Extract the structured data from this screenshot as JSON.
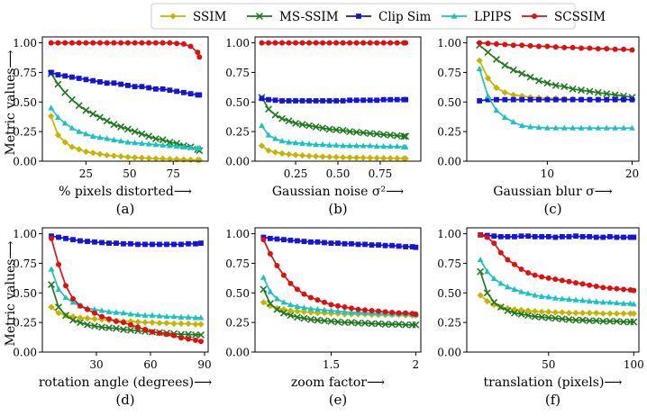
{
  "figure": {
    "ylabel": "Metric values⟶",
    "legend_position": "top-center"
  },
  "legend": [
    {
      "name": "SSIM",
      "color": "#c8b400",
      "marker": "diamond"
    },
    {
      "name": "MS-SSIM",
      "color": "#1f7a1f",
      "marker": "x"
    },
    {
      "name": "Clip Sim",
      "color": "#1515d6",
      "marker": "square"
    },
    {
      "name": "LPIPS",
      "color": "#19c3c3",
      "marker": "triangle"
    },
    {
      "name": "SCSSIM",
      "color": "#e01010",
      "marker": "circle"
    }
  ],
  "chart_data": [
    {
      "type": "line",
      "panel_label": "(a)",
      "xlabel": "% pixels distorted⟶",
      "xlim": [
        0,
        95
      ],
      "ylim": [
        0,
        1.05
      ],
      "xticks": [
        25,
        50,
        75
      ],
      "yticks": [
        0.0,
        0.25,
        0.5,
        0.75,
        1.0
      ],
      "x": [
        5,
        9,
        13,
        17,
        21,
        25,
        29,
        33,
        37,
        41,
        45,
        49,
        53,
        57,
        61,
        65,
        69,
        73,
        77,
        81,
        85,
        89,
        90
      ],
      "series": [
        {
          "name": "SSIM",
          "values": [
            0.38,
            0.22,
            0.16,
            0.12,
            0.1,
            0.08,
            0.07,
            0.06,
            0.05,
            0.045,
            0.04,
            0.035,
            0.03,
            0.028,
            0.025,
            0.022,
            0.02,
            0.018,
            0.016,
            0.014,
            0.012,
            0.01,
            0.01
          ]
        },
        {
          "name": "MS-SSIM",
          "values": [
            0.74,
            0.65,
            0.58,
            0.52,
            0.47,
            0.43,
            0.4,
            0.37,
            0.34,
            0.31,
            0.29,
            0.27,
            0.25,
            0.23,
            0.21,
            0.19,
            0.18,
            0.16,
            0.15,
            0.13,
            0.12,
            0.1,
            0.09
          ]
        },
        {
          "name": "Clip Sim",
          "values": [
            0.75,
            0.73,
            0.72,
            0.71,
            0.7,
            0.69,
            0.68,
            0.67,
            0.66,
            0.66,
            0.65,
            0.64,
            0.63,
            0.63,
            0.62,
            0.61,
            0.61,
            0.6,
            0.59,
            0.58,
            0.57,
            0.56,
            0.56
          ]
        },
        {
          "name": "LPIPS",
          "values": [
            0.45,
            0.37,
            0.32,
            0.28,
            0.25,
            0.23,
            0.21,
            0.2,
            0.19,
            0.18,
            0.17,
            0.16,
            0.155,
            0.15,
            0.145,
            0.14,
            0.135,
            0.13,
            0.125,
            0.12,
            0.115,
            0.11,
            0.11
          ]
        },
        {
          "name": "SCSSIM",
          "values": [
            1.0,
            1.0,
            1.0,
            1.0,
            1.0,
            1.0,
            1.0,
            1.0,
            1.0,
            1.0,
            1.0,
            1.0,
            1.0,
            1.0,
            1.0,
            1.0,
            1.0,
            1.0,
            0.995,
            0.99,
            0.97,
            0.92,
            0.88
          ]
        }
      ]
    },
    {
      "type": "line",
      "panel_label": "(b)",
      "xlabel": "Gaussian noise σ²⟶",
      "xlim": [
        0.01,
        0.99
      ],
      "ylim": [
        0,
        1.05
      ],
      "xticks": [
        0.25,
        0.5,
        0.75
      ],
      "yticks": [
        0.0,
        0.25,
        0.5,
        0.75,
        1.0
      ],
      "x": [
        0.05,
        0.09,
        0.13,
        0.17,
        0.21,
        0.25,
        0.29,
        0.33,
        0.37,
        0.41,
        0.45,
        0.49,
        0.53,
        0.57,
        0.61,
        0.65,
        0.69,
        0.73,
        0.77,
        0.81,
        0.85,
        0.89,
        0.9
      ],
      "series": [
        {
          "name": "SSIM",
          "values": [
            0.13,
            0.09,
            0.075,
            0.065,
            0.058,
            0.052,
            0.048,
            0.044,
            0.041,
            0.038,
            0.036,
            0.034,
            0.032,
            0.031,
            0.03,
            0.029,
            0.028,
            0.027,
            0.026,
            0.025,
            0.024,
            0.023,
            0.023
          ]
        },
        {
          "name": "MS-SSIM",
          "values": [
            0.54,
            0.44,
            0.39,
            0.36,
            0.34,
            0.32,
            0.31,
            0.3,
            0.29,
            0.28,
            0.27,
            0.265,
            0.26,
            0.25,
            0.245,
            0.24,
            0.235,
            0.23,
            0.225,
            0.22,
            0.215,
            0.21,
            0.21
          ]
        },
        {
          "name": "Clip Sim",
          "values": [
            0.53,
            0.52,
            0.515,
            0.51,
            0.51,
            0.51,
            0.51,
            0.51,
            0.51,
            0.51,
            0.51,
            0.51,
            0.51,
            0.515,
            0.515,
            0.515,
            0.515,
            0.515,
            0.52,
            0.52,
            0.52,
            0.52,
            0.52
          ]
        },
        {
          "name": "LPIPS",
          "values": [
            0.3,
            0.22,
            0.19,
            0.17,
            0.16,
            0.155,
            0.15,
            0.145,
            0.14,
            0.14,
            0.135,
            0.135,
            0.13,
            0.13,
            0.13,
            0.13,
            0.13,
            0.125,
            0.125,
            0.125,
            0.125,
            0.12,
            0.12
          ]
        },
        {
          "name": "SCSSIM",
          "values": [
            1.0,
            1.0,
            1.0,
            1.0,
            1.0,
            1.0,
            1.0,
            1.0,
            1.0,
            1.0,
            1.0,
            1.0,
            1.0,
            1.0,
            1.0,
            1.0,
            1.0,
            1.0,
            1.0,
            1.0,
            1.0,
            1.0,
            1.0
          ]
        }
      ]
    },
    {
      "type": "line",
      "panel_label": "(c)",
      "xlabel": "Gaussian blur σ⟶",
      "xlim": [
        0.5,
        20.8
      ],
      "ylim": [
        0,
        1.05
      ],
      "xticks": [
        10,
        20
      ],
      "yticks": [
        0.0,
        0.25,
        0.5,
        0.75,
        1.0
      ],
      "x": [
        2,
        3,
        4,
        5,
        6,
        7,
        8,
        9,
        10,
        11,
        12,
        13,
        14,
        15,
        16,
        17,
        18,
        19,
        20
      ],
      "series": [
        {
          "name": "SSIM",
          "values": [
            0.85,
            0.7,
            0.62,
            0.58,
            0.56,
            0.55,
            0.54,
            0.535,
            0.53,
            0.53,
            0.525,
            0.525,
            0.52,
            0.52,
            0.52,
            0.52,
            0.52,
            0.52,
            0.52
          ]
        },
        {
          "name": "MS-SSIM",
          "values": [
            0.98,
            0.92,
            0.86,
            0.81,
            0.77,
            0.74,
            0.71,
            0.68,
            0.66,
            0.64,
            0.63,
            0.61,
            0.6,
            0.59,
            0.58,
            0.57,
            0.56,
            0.55,
            0.54
          ]
        },
        {
          "name": "Clip Sim",
          "values": [
            0.51,
            0.52,
            0.52,
            0.52,
            0.52,
            0.52,
            0.52,
            0.52,
            0.52,
            0.52,
            0.52,
            0.52,
            0.52,
            0.52,
            0.52,
            0.52,
            0.52,
            0.52,
            0.52
          ]
        },
        {
          "name": "LPIPS",
          "values": [
            0.78,
            0.55,
            0.43,
            0.37,
            0.33,
            0.3,
            0.29,
            0.285,
            0.28,
            0.28,
            0.28,
            0.28,
            0.28,
            0.28,
            0.28,
            0.28,
            0.28,
            0.28,
            0.28
          ]
        },
        {
          "name": "SCSSIM",
          "values": [
            1.0,
            0.995,
            0.99,
            0.985,
            0.98,
            0.98,
            0.975,
            0.97,
            0.97,
            0.965,
            0.96,
            0.96,
            0.955,
            0.955,
            0.95,
            0.95,
            0.945,
            0.945,
            0.94
          ]
        }
      ]
    },
    {
      "type": "line",
      "panel_label": "(d)",
      "xlabel": "rotation angle (degrees)⟶",
      "xlim": [
        0,
        92
      ],
      "ylim": [
        0,
        1.05
      ],
      "xticks": [
        30,
        60,
        90
      ],
      "yticks": [
        0.0,
        0.25,
        0.5,
        0.75,
        1.0
      ],
      "x": [
        5,
        9,
        13,
        17,
        21,
        25,
        29,
        33,
        37,
        41,
        45,
        49,
        53,
        57,
        61,
        65,
        69,
        73,
        77,
        81,
        85,
        88
      ],
      "series": [
        {
          "name": "SSIM",
          "values": [
            0.38,
            0.33,
            0.31,
            0.3,
            0.29,
            0.285,
            0.28,
            0.275,
            0.27,
            0.265,
            0.26,
            0.26,
            0.255,
            0.25,
            0.25,
            0.245,
            0.245,
            0.24,
            0.24,
            0.24,
            0.235,
            0.235
          ]
        },
        {
          "name": "MS-SSIM",
          "values": [
            0.57,
            0.38,
            0.31,
            0.27,
            0.25,
            0.23,
            0.22,
            0.21,
            0.205,
            0.2,
            0.19,
            0.185,
            0.18,
            0.175,
            0.17,
            0.165,
            0.16,
            0.155,
            0.15,
            0.15,
            0.145,
            0.145
          ]
        },
        {
          "name": "Clip Sim",
          "values": [
            0.98,
            0.97,
            0.96,
            0.95,
            0.94,
            0.935,
            0.93,
            0.925,
            0.92,
            0.92,
            0.915,
            0.915,
            0.91,
            0.91,
            0.91,
            0.91,
            0.91,
            0.91,
            0.91,
            0.915,
            0.915,
            0.92
          ]
        },
        {
          "name": "LPIPS",
          "values": [
            0.7,
            0.53,
            0.46,
            0.42,
            0.39,
            0.37,
            0.36,
            0.35,
            0.34,
            0.335,
            0.33,
            0.32,
            0.315,
            0.31,
            0.31,
            0.305,
            0.3,
            0.3,
            0.295,
            0.295,
            0.29,
            0.29
          ]
        },
        {
          "name": "SCSSIM",
          "values": [
            0.96,
            0.74,
            0.56,
            0.45,
            0.39,
            0.36,
            0.33,
            0.3,
            0.28,
            0.26,
            0.25,
            0.23,
            0.21,
            0.19,
            0.17,
            0.16,
            0.15,
            0.14,
            0.12,
            0.11,
            0.1,
            0.09
          ]
        }
      ]
    },
    {
      "type": "line",
      "panel_label": "(e)",
      "xlabel": "zoom factor⟶",
      "xlim": [
        1.05,
        2.03
      ],
      "ylim": [
        0,
        1.05
      ],
      "xticks": [
        1.5,
        2.0
      ],
      "yticks": [
        0.0,
        0.25,
        0.5,
        0.75,
        1.0
      ],
      "x": [
        1.1,
        1.14,
        1.18,
        1.22,
        1.26,
        1.3,
        1.34,
        1.38,
        1.42,
        1.46,
        1.5,
        1.54,
        1.58,
        1.62,
        1.66,
        1.7,
        1.74,
        1.78,
        1.82,
        1.86,
        1.9,
        1.94,
        1.98,
        2.0
      ],
      "series": [
        {
          "name": "SSIM",
          "values": [
            0.42,
            0.39,
            0.37,
            0.36,
            0.35,
            0.345,
            0.34,
            0.335,
            0.33,
            0.33,
            0.325,
            0.325,
            0.32,
            0.32,
            0.32,
            0.32,
            0.315,
            0.315,
            0.315,
            0.315,
            0.315,
            0.31,
            0.31,
            0.31
          ]
        },
        {
          "name": "MS-SSIM",
          "values": [
            0.53,
            0.41,
            0.36,
            0.33,
            0.31,
            0.295,
            0.285,
            0.275,
            0.27,
            0.265,
            0.26,
            0.255,
            0.25,
            0.25,
            0.245,
            0.245,
            0.24,
            0.24,
            0.235,
            0.235,
            0.235,
            0.23,
            0.23,
            0.23
          ]
        },
        {
          "name": "Clip Sim",
          "values": [
            0.97,
            0.96,
            0.955,
            0.95,
            0.945,
            0.94,
            0.935,
            0.93,
            0.93,
            0.925,
            0.92,
            0.92,
            0.915,
            0.915,
            0.91,
            0.91,
            0.905,
            0.905,
            0.9,
            0.9,
            0.895,
            0.89,
            0.89,
            0.885
          ]
        },
        {
          "name": "LPIPS",
          "values": [
            0.63,
            0.51,
            0.45,
            0.42,
            0.4,
            0.385,
            0.375,
            0.365,
            0.36,
            0.355,
            0.35,
            0.345,
            0.34,
            0.335,
            0.335,
            0.33,
            0.33,
            0.325,
            0.325,
            0.32,
            0.32,
            0.32,
            0.315,
            0.315
          ]
        },
        {
          "name": "SCSSIM",
          "values": [
            0.95,
            0.83,
            0.73,
            0.65,
            0.58,
            0.53,
            0.49,
            0.46,
            0.44,
            0.42,
            0.4,
            0.39,
            0.38,
            0.37,
            0.36,
            0.355,
            0.35,
            0.345,
            0.34,
            0.335,
            0.33,
            0.33,
            0.325,
            0.32
          ]
        }
      ]
    },
    {
      "type": "line",
      "panel_label": "(f)",
      "xlabel": "translation (pixels)⟶",
      "xlim": [
        2,
        103
      ],
      "ylim": [
        0,
        1.05
      ],
      "xticks": [
        50,
        100
      ],
      "yticks": [
        0.0,
        0.25,
        0.5,
        0.75,
        1.0
      ],
      "x": [
        10,
        14,
        18,
        22,
        26,
        30,
        34,
        38,
        42,
        46,
        50,
        54,
        58,
        62,
        66,
        70,
        74,
        78,
        82,
        86,
        90,
        94,
        98,
        100
      ],
      "series": [
        {
          "name": "SSIM",
          "values": [
            0.48,
            0.43,
            0.4,
            0.38,
            0.37,
            0.36,
            0.355,
            0.35,
            0.345,
            0.34,
            0.34,
            0.335,
            0.335,
            0.33,
            0.33,
            0.33,
            0.33,
            0.33,
            0.325,
            0.325,
            0.325,
            0.325,
            0.325,
            0.325
          ]
        },
        {
          "name": "MS-SSIM",
          "values": [
            0.68,
            0.5,
            0.42,
            0.38,
            0.35,
            0.33,
            0.32,
            0.31,
            0.3,
            0.295,
            0.29,
            0.285,
            0.28,
            0.275,
            0.27,
            0.27,
            0.265,
            0.265,
            0.26,
            0.26,
            0.26,
            0.255,
            0.255,
            0.255
          ]
        },
        {
          "name": "Clip Sim",
          "values": [
            0.99,
            0.985,
            0.98,
            0.975,
            0.975,
            0.975,
            0.98,
            0.98,
            0.975,
            0.975,
            0.975,
            0.97,
            0.975,
            0.975,
            0.98,
            0.975,
            0.975,
            0.97,
            0.97,
            0.975,
            0.97,
            0.97,
            0.97,
            0.97
          ]
        },
        {
          "name": "LPIPS",
          "values": [
            0.78,
            0.68,
            0.62,
            0.58,
            0.55,
            0.53,
            0.51,
            0.495,
            0.48,
            0.47,
            0.465,
            0.455,
            0.45,
            0.445,
            0.44,
            0.435,
            0.43,
            0.425,
            0.42,
            0.42,
            0.415,
            0.41,
            0.41,
            0.405
          ]
        },
        {
          "name": "SCSSIM",
          "values": [
            0.99,
            0.97,
            0.92,
            0.84,
            0.78,
            0.74,
            0.7,
            0.67,
            0.65,
            0.635,
            0.625,
            0.615,
            0.605,
            0.595,
            0.585,
            0.575,
            0.565,
            0.555,
            0.545,
            0.54,
            0.535,
            0.53,
            0.525,
            0.52
          ]
        }
      ]
    }
  ]
}
